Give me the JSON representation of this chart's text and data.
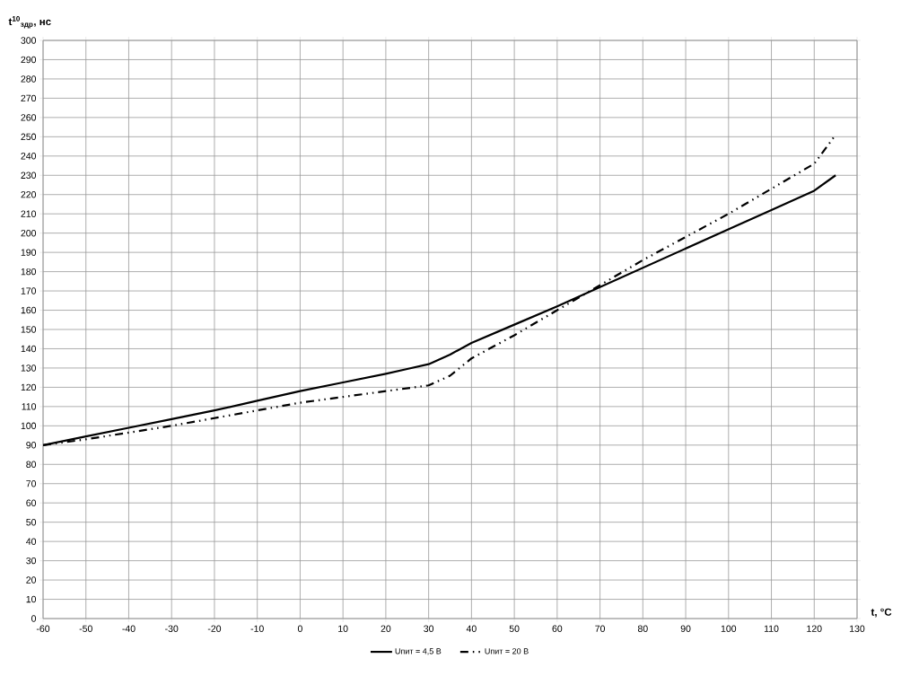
{
  "chart_data": {
    "type": "line",
    "xlabel": "**t, °C**",
    "ylabel": "**t$^{10}$$_{здр}$, нс**",
    "xlim": [
      -60,
      130
    ],
    "xticks": [
      -60,
      -50,
      -40,
      -30,
      -20,
      -10,
      0,
      10,
      20,
      30,
      40,
      50,
      60,
      70,
      80,
      90,
      100,
      110,
      120,
      130
    ],
    "ylim": [
      0,
      300
    ],
    "yticks": [
      0,
      10,
      20,
      30,
      40,
      50,
      60,
      70,
      80,
      90,
      100,
      110,
      120,
      130,
      140,
      150,
      160,
      170,
      180,
      190,
      200,
      210,
      220,
      230,
      240,
      250,
      260,
      270,
      280,
      290,
      300
    ],
    "grid": true,
    "legend": "bottom",
    "series": [
      {
        "name": "Uпит = 4,5 В",
        "color": "#000000",
        "line_style": "solid",
        "x": [
          -60,
          -50,
          -40,
          -30,
          -20,
          -10,
          0,
          10,
          20,
          25,
          30,
          35,
          40,
          50,
          60,
          70,
          80,
          90,
          100,
          110,
          120,
          125
        ],
        "values": [
          90,
          94.5,
          99,
          103.5,
          108,
          113,
          118,
          122.5,
          127,
          129.5,
          132,
          137,
          143,
          152.5,
          162,
          172,
          182,
          192,
          202,
          212,
          222,
          230
        ]
      },
      {
        "name": "Uпит = 20 В",
        "color": "#000000",
        "line_style": "dashed",
        "x": [
          -60,
          -50,
          -40,
          -30,
          -20,
          -10,
          0,
          10,
          20,
          30,
          35,
          40,
          50,
          60,
          70,
          80,
          90,
          100,
          110,
          120,
          125
        ],
        "values": [
          90,
          93,
          96.5,
          100,
          104,
          108,
          112,
          115,
          118,
          121,
          126,
          135,
          147,
          160,
          173,
          186,
          198,
          210,
          223,
          236,
          251
        ]
      }
    ]
  }
}
